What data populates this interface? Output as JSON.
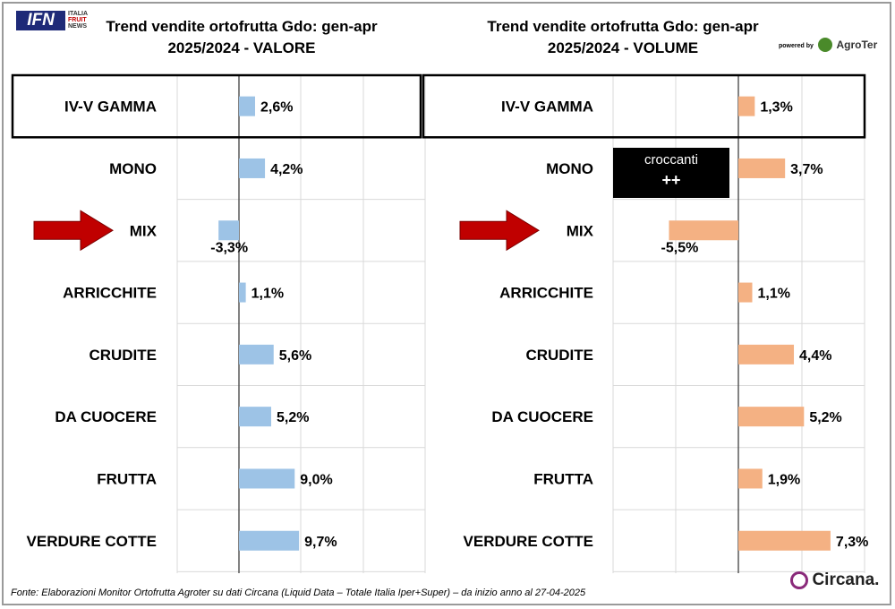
{
  "header": {
    "left_title_line1": "Trend vendite ortofrutta Gdo: gen-apr",
    "left_title_line2": "2025/2024 - VALORE",
    "right_title_line1": "Trend vendite ortofrutta Gdo: gen-apr",
    "right_title_line2": "2025/2024 - VOLUME"
  },
  "ifn_logo": {
    "text": "IFN",
    "side1": "ITALIA",
    "side2": "FRUIT",
    "side3": "NEWS"
  },
  "powered_by": "powered by",
  "agroter_logo": "AgroTer",
  "annotation": {
    "line1": "croccanti",
    "line2": "++"
  },
  "footer": "Fonte: Elaborazioni Monitor Ortofrutta Agroter su dati Circana (Liquid Data – Totale Italia Iper+Super) –  da inizio anno al 27-04-2025",
  "circana_logo": "Circana.",
  "colors": {
    "valore_bar": "#9dc3e6",
    "volume_bar": "#f4b183",
    "arrow": "#c00000",
    "grid": "#d9d9d9"
  },
  "chart_data": [
    {
      "type": "bar",
      "orientation": "horizontal",
      "title": "Trend vendite ortofrutta Gdo: gen-apr 2025/2024 - VALORE",
      "categories": [
        "IV-V GAMMA",
        "MONO",
        "MIX",
        "ARRICCHITE",
        "CRUDITE",
        "DA CUOCERE",
        "FRUTTA",
        "VERDURE COTTE"
      ],
      "values": [
        2.6,
        4.2,
        -3.3,
        1.1,
        5.6,
        5.2,
        9.0,
        9.7
      ],
      "labels": [
        "2,6%",
        "4,2%",
        "-3,3%",
        "1,1%",
        "5,6%",
        "5,2%",
        "9,0%",
        "9,7%"
      ],
      "xlim": [
        -10,
        12
      ],
      "grid": true,
      "highlight": "IV-V GAMMA",
      "arrow_on": "MIX"
    },
    {
      "type": "bar",
      "orientation": "horizontal",
      "title": "Trend vendite ortofrutta Gdo: gen-apr 2025/2024 - VOLUME",
      "categories": [
        "IV-V GAMMA",
        "MONO",
        "MIX",
        "ARRICCHITE",
        "CRUDITE",
        "DA CUOCERE",
        "FRUTTA",
        "VERDURE COTTE"
      ],
      "values": [
        1.3,
        3.7,
        -5.5,
        1.1,
        4.4,
        5.2,
        1.9,
        7.3
      ],
      "labels": [
        "1,3%",
        "3,7%",
        "-5,5%",
        "1,1%",
        "4,4%",
        "5,2%",
        "1,9%",
        "7,3%"
      ],
      "xlim": [
        -20,
        20
      ],
      "grid": true,
      "highlight": "IV-V GAMMA",
      "arrow_on": "MIX"
    }
  ]
}
